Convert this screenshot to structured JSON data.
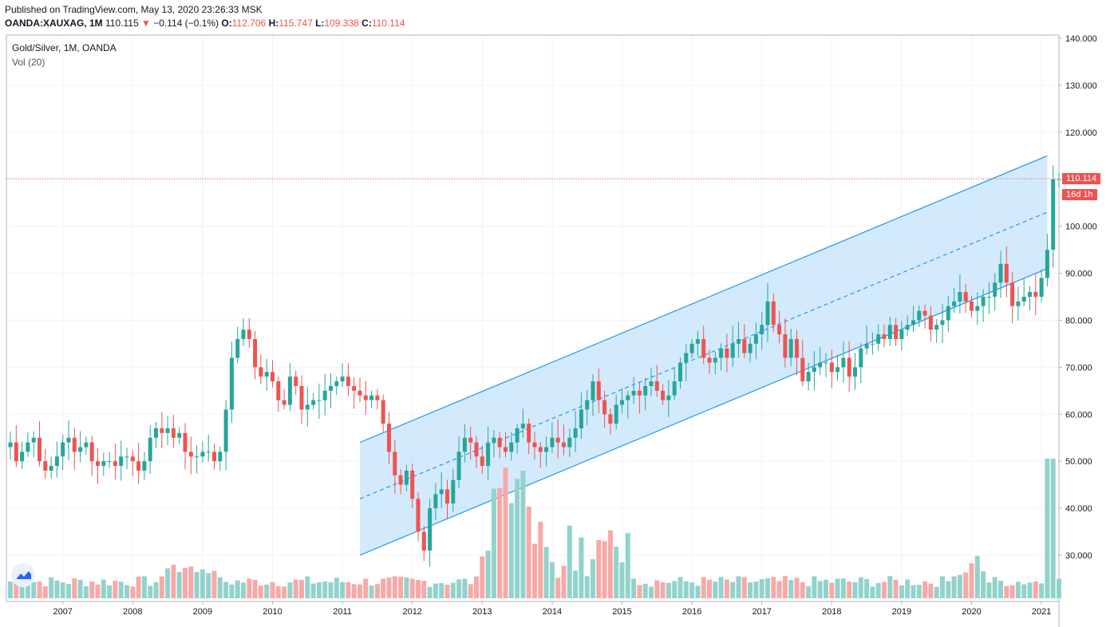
{
  "header": {
    "published": "Published on TradingView.com, May 13, 2020 23:26:33 MSK",
    "symbol": "OANDA:XAUXAG, 1M",
    "last": "110.115",
    "change": "−0.114 (−0.1%)",
    "o_label": "O:",
    "o_val": "112.706",
    "h_label": "H:",
    "h_val": "115.747",
    "l_label": "L:",
    "l_val": "109.338",
    "c_label": "C:",
    "c_val": "110.114"
  },
  "legend": {
    "title": "Gold/Silver, 1M, OANDA",
    "volume": "Vol (20)"
  },
  "price_tag": {
    "value": "110.114",
    "countdown": "16d 1h"
  },
  "colors": {
    "up": "#26a69a",
    "down": "#ef5350",
    "up_vol": "#92d2cc",
    "down_vol": "#f7a9a7",
    "channel": "#2196f3",
    "channel_fill": "#bbdefb",
    "grid": "#f0f3fa"
  },
  "chart_data": {
    "type": "candlestick",
    "ylim": [
      20,
      140
    ],
    "y_ticks": [
      "30.000",
      "40.000",
      "50.000",
      "60.000",
      "70.000",
      "80.000",
      "90.000",
      "100.000",
      "110.000",
      "120.000",
      "130.000",
      "140.000"
    ],
    "x_ticks": [
      "2007",
      "2008",
      "2009",
      "2010",
      "2011",
      "2012",
      "2013",
      "2014",
      "2015",
      "2016",
      "2017",
      "2018",
      "2019",
      "2020",
      "2021"
    ],
    "start": "2006-04",
    "close": [
      54,
      50,
      52,
      54,
      55,
      50,
      48,
      49,
      51,
      54,
      55,
      52,
      53,
      54,
      50,
      49,
      50,
      50,
      49,
      51,
      51,
      50,
      48,
      50,
      55,
      57,
      56,
      57,
      55,
      56,
      52,
      51,
      51,
      52,
      52,
      50,
      52,
      61,
      72,
      76,
      78,
      76,
      70,
      68,
      69,
      67,
      63,
      62,
      68,
      66,
      61,
      62,
      63,
      63,
      65,
      66,
      67,
      68,
      66,
      65,
      64,
      63,
      64,
      63,
      58,
      52,
      47,
      45,
      48,
      42,
      35,
      31,
      40,
      43,
      44,
      41,
      46,
      52,
      55,
      54,
      51,
      49,
      54,
      55,
      53,
      52,
      54,
      57,
      58,
      54,
      53,
      52,
      53,
      55,
      54,
      53,
      55,
      57,
      61,
      63,
      67,
      63,
      60,
      58,
      62,
      63,
      64,
      65,
      64,
      66,
      67,
      65,
      63,
      64,
      67,
      71,
      73,
      75,
      76,
      72,
      71,
      72,
      74,
      72,
      75,
      76,
      73,
      75,
      77,
      79,
      84,
      79,
      77,
      72,
      76,
      72,
      67,
      69,
      70,
      71,
      71,
      69,
      70,
      72,
      68,
      70,
      74,
      75,
      75,
      77,
      76,
      79,
      76,
      78,
      79,
      80,
      82,
      81,
      78,
      79,
      80,
      83,
      84,
      86,
      84,
      82,
      83,
      85,
      85,
      88,
      92,
      88,
      83,
      84,
      85,
      86,
      85,
      89,
      95,
      110,
      110
    ],
    "volume_scale": "relative",
    "channel": {
      "upper": [
        [
          "2011-04",
          54
        ],
        [
          "2021-02",
          115
        ]
      ],
      "middle": [
        [
          "2011-04",
          42
        ],
        [
          "2021-02",
          103
        ]
      ],
      "lower": [
        [
          "2011-04",
          30
        ],
        [
          "2021-02",
          91
        ]
      ]
    },
    "last_price": 110.114
  }
}
